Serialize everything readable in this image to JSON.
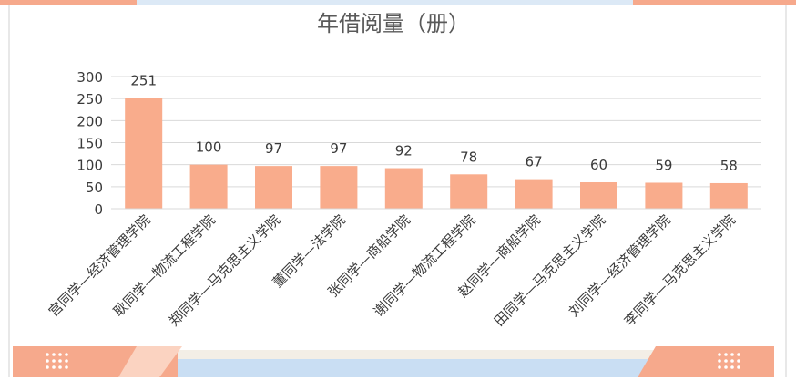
{
  "colors": {
    "bar": "#F9AC8C",
    "accent_peach": "#F6A98C",
    "accent_blue": "#C9DEF3",
    "grid": "#D9D9D9",
    "text": "#3A3A3A",
    "title": "#595959"
  },
  "chart_data": {
    "type": "bar",
    "title": "年借阅量（册）",
    "xlabel": "",
    "ylabel": "",
    "ylim": [
      0,
      300
    ],
    "yticks": [
      0,
      50,
      100,
      150,
      200,
      250,
      300
    ],
    "grid": true,
    "legend": "none",
    "categories": [
      "宫同学—经济管理学院",
      "耿同学—物流工程学院",
      "郑同学—马克思主义学院",
      "董同学—法学院",
      "张同学—商船学院",
      "谢同学—物流工程学院",
      "赵同学—商船学院",
      "田同学—马克思主义学院",
      "刘同学—经济管理学院",
      "李同学—马克思主义学院"
    ],
    "values": [
      251,
      100,
      97,
      97,
      92,
      78,
      67,
      60,
      59,
      58
    ]
  }
}
